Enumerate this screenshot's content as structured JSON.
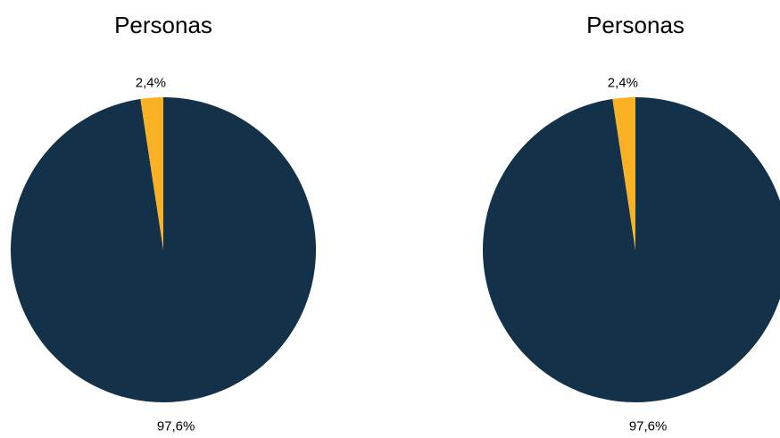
{
  "chart_data": [
    {
      "type": "pie",
      "title": "Personas",
      "values": [
        97.6,
        2.4
      ],
      "value_labels": [
        "97,6%",
        "2,4%"
      ],
      "colors": [
        "#133249",
        "#fbb124"
      ]
    },
    {
      "type": "pie",
      "title": "Personas",
      "values": [
        97.6,
        2.4
      ],
      "value_labels": [
        "97,6%",
        "2,4%"
      ],
      "colors": [
        "#133249",
        "#fbb124"
      ]
    }
  ]
}
